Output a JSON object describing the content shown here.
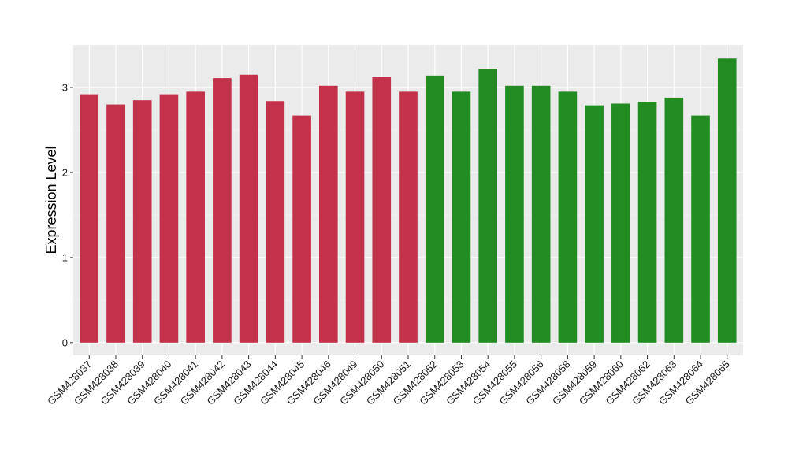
{
  "chart_data": {
    "type": "bar",
    "title": "",
    "xlabel": "",
    "ylabel": "Expression Level",
    "ylim": [
      -0.15,
      3.5
    ],
    "yticks": [
      0,
      1,
      2,
      3
    ],
    "grid": true,
    "background": "#EBEBEB",
    "categories": [
      "GSM428037",
      "GSM428038",
      "GSM428039",
      "GSM428040",
      "GSM428041",
      "GSM428042",
      "GSM428043",
      "GSM428044",
      "GSM428045",
      "GSM428046",
      "GSM428049",
      "GSM428050",
      "GSM428051",
      "GSM428052",
      "GSM428053",
      "GSM428054",
      "GSM428055",
      "GSM428056",
      "GSM428058",
      "GSM428059",
      "GSM428060",
      "GSM428062",
      "GSM428063",
      "GSM428064",
      "GSM428065"
    ],
    "values": [
      2.92,
      2.8,
      2.85,
      2.92,
      2.95,
      3.11,
      3.15,
      2.84,
      2.67,
      3.02,
      2.95,
      3.12,
      2.95,
      3.14,
      2.95,
      3.22,
      3.02,
      3.02,
      2.95,
      2.79,
      2.81,
      2.83,
      2.88,
      2.67,
      3.34
    ],
    "colors": [
      "#C4314B",
      "#C4314B",
      "#C4314B",
      "#C4314B",
      "#C4314B",
      "#C4314B",
      "#C4314B",
      "#C4314B",
      "#C4314B",
      "#C4314B",
      "#C4314B",
      "#C4314B",
      "#C4314B",
      "#228B22",
      "#228B22",
      "#228B22",
      "#228B22",
      "#228B22",
      "#228B22",
      "#228B22",
      "#228B22",
      "#228B22",
      "#228B22",
      "#228B22",
      "#228B22"
    ]
  }
}
